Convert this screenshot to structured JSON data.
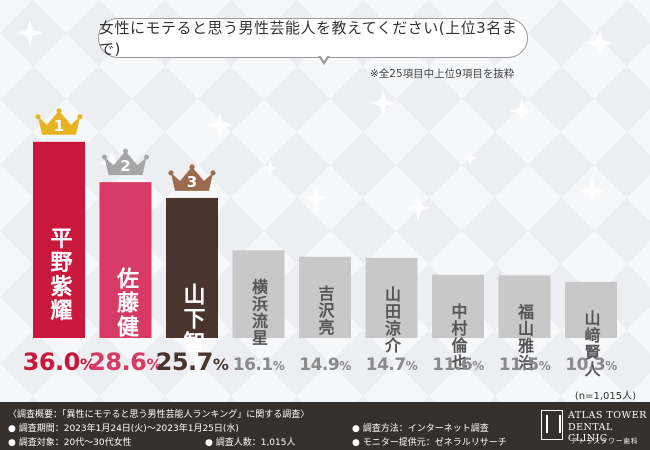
{
  "title": "女性にモテると思う男性芸能人を教えてください(上位3名まで)",
  "note": "※全25項目中上位9項目を抜粋",
  "sample_note": "(n=1,015人)",
  "chart_data": {
    "type": "bar",
    "categories": [
      "平野紫耀",
      "佐藤健",
      "山下智久",
      "横浜流星",
      "吉沢亮",
      "山田涼介",
      "中村倫也",
      "福山雅治",
      "山﨑賢人"
    ],
    "values": [
      36.0,
      28.6,
      25.7,
      16.1,
      14.9,
      14.7,
      11.6,
      11.5,
      10.3
    ],
    "value_labels": [
      {
        "num": "36.0",
        "unit": "%"
      },
      {
        "num": "28.6",
        "unit": "%"
      },
      {
        "num": "25.7",
        "unit": "%"
      },
      {
        "num": "16.1",
        "unit": "%"
      },
      {
        "num": "14.9",
        "unit": "%"
      },
      {
        "num": "14.7",
        "unit": "%"
      },
      {
        "num": "11.6",
        "unit": "%"
      },
      {
        "num": "11.5",
        "unit": "%"
      },
      {
        "num": "10.3",
        "unit": "%"
      }
    ],
    "ranks": [
      "1",
      "2",
      "3"
    ],
    "colors": {
      "bars": [
        "#c8193c",
        "#d83a66",
        "#4a342e",
        "#c8c8c8",
        "#c8c8c8",
        "#c8c8c8",
        "#c8c8c8",
        "#c8c8c8",
        "#c8c8c8"
      ],
      "value_text": [
        "#c8193c",
        "#d83a66",
        "#4a342e",
        "#8a8a8a",
        "#8a8a8a",
        "#8a8a8a",
        "#8a8a8a",
        "#8a8a8a",
        "#8a8a8a"
      ],
      "crowns": [
        "#e6b422",
        "#a6a6a6",
        "#9c6b4e"
      ]
    },
    "ylim": [
      0,
      40
    ],
    "grid": false,
    "legend": "none"
  },
  "footer": {
    "overview": "〈調査概要：「異性にモテると思う男性芸能人ランキング」に関する調査〉",
    "period": "● 調査期間：2023年1月24日(火)〜2023年1月25日(水)",
    "target": "● 調査対象：20代〜30代女性",
    "count": "● 調査人数：1,015人",
    "method": "● 調査方法：インターネット調査",
    "provider": "● モニター提供元：ゼネラルリサーチ"
  },
  "logo": {
    "line1": "ATLAS TOWER",
    "line2": "DENTAL CLINIC",
    "line3": "アトラスタワー歯科"
  }
}
